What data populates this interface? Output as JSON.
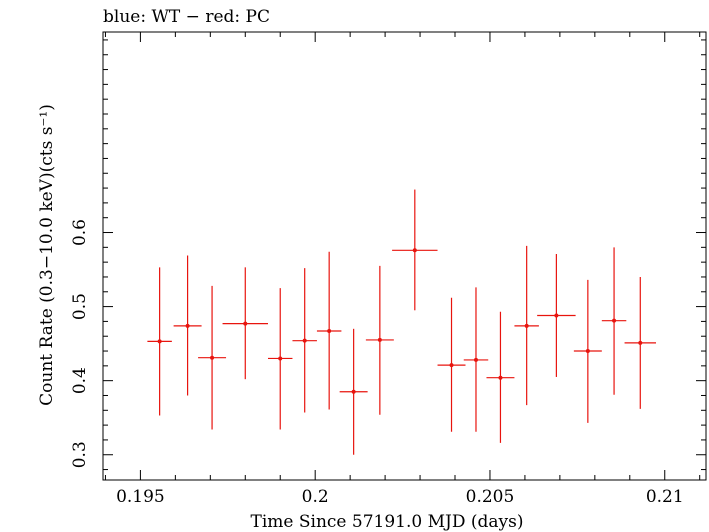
{
  "chart_data": {
    "type": "scatter",
    "title": "blue: WT − red: PC",
    "xlabel": "Time Since 57191.0 MJD (days)",
    "ylabel": "Count Rate (0.3−10.0 keV)(cts s⁻¹)",
    "xlim": [
      0.19393,
      0.21118
    ],
    "ylim": [
      0.2659,
      0.8707
    ],
    "xticks": [
      0.195,
      0.2,
      0.205,
      0.21
    ],
    "xtick_labels": [
      "0.195",
      "0.2",
      "0.205",
      "0.21"
    ],
    "yticks": [
      0.3,
      0.4,
      0.5,
      0.6
    ],
    "ytick_labels": [
      "0.3",
      "0.4",
      "0.5",
      "0.6"
    ],
    "grid": false,
    "series": [
      {
        "color": "#e8140e",
        "points": [
          {
            "x": 0.19555,
            "y": 0.453,
            "xerr": 0.00035,
            "ylo": 0.353,
            "yhi": 0.553
          },
          {
            "x": 0.19635,
            "y": 0.474,
            "xerr": 0.0004,
            "ylo": 0.38,
            "yhi": 0.569
          },
          {
            "x": 0.19705,
            "y": 0.431,
            "xerr": 0.0004,
            "ylo": 0.334,
            "yhi": 0.528
          },
          {
            "x": 0.198,
            "y": 0.477,
            "xerr": 0.00065,
            "ylo": 0.402,
            "yhi": 0.553
          },
          {
            "x": 0.199,
            "y": 0.43,
            "xerr": 0.00035,
            "ylo": 0.334,
            "yhi": 0.525
          },
          {
            "x": 0.1997,
            "y": 0.454,
            "xerr": 0.00035,
            "ylo": 0.357,
            "yhi": 0.552
          },
          {
            "x": 0.2004,
            "y": 0.467,
            "xerr": 0.00035,
            "ylo": 0.361,
            "yhi": 0.574
          },
          {
            "x": 0.2011,
            "y": 0.385,
            "xerr": 0.0004,
            "ylo": 0.3,
            "yhi": 0.47
          },
          {
            "x": 0.20185,
            "y": 0.455,
            "xerr": 0.0004,
            "ylo": 0.354,
            "yhi": 0.555
          },
          {
            "x": 0.20285,
            "y": 0.576,
            "xerr": 0.00065,
            "ylo": 0.495,
            "yhi": 0.658
          },
          {
            "x": 0.2039,
            "y": 0.421,
            "xerr": 0.0004,
            "ylo": 0.331,
            "yhi": 0.512
          },
          {
            "x": 0.2046,
            "y": 0.428,
            "xerr": 0.00035,
            "ylo": 0.331,
            "yhi": 0.526
          },
          {
            "x": 0.2053,
            "y": 0.404,
            "xerr": 0.0004,
            "ylo": 0.316,
            "yhi": 0.493
          },
          {
            "x": 0.20605,
            "y": 0.474,
            "xerr": 0.00035,
            "ylo": 0.367,
            "yhi": 0.582
          },
          {
            "x": 0.2069,
            "y": 0.488,
            "xerr": 0.00055,
            "ylo": 0.405,
            "yhi": 0.571
          },
          {
            "x": 0.2078,
            "y": 0.44,
            "xerr": 0.0004,
            "ylo": 0.343,
            "yhi": 0.536
          },
          {
            "x": 0.20855,
            "y": 0.481,
            "xerr": 0.00035,
            "ylo": 0.381,
            "yhi": 0.58
          },
          {
            "x": 0.2093,
            "y": 0.451,
            "xerr": 0.00045,
            "ylo": 0.362,
            "yhi": 0.54
          }
        ]
      }
    ]
  }
}
